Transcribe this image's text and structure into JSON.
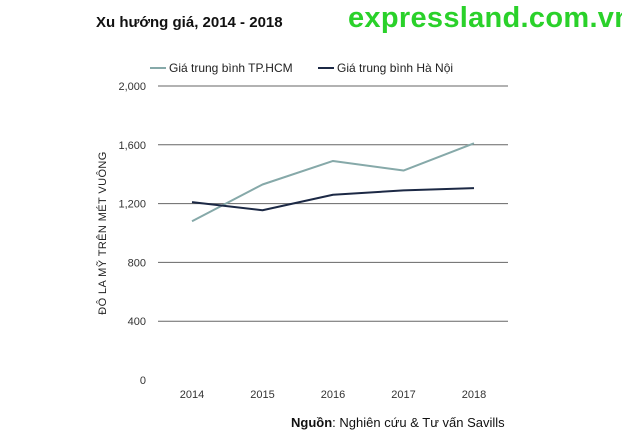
{
  "watermark": "expressland.com.vn",
  "source": {
    "label": "Nguồn",
    "text": ": Nghiên cứu & Tư vấn Savills"
  },
  "colors": {
    "hcm": "#86a9a9",
    "hanoi": "#1c2945",
    "grid": "#666666",
    "axis_text": "#333333"
  },
  "chart_data": {
    "type": "line",
    "title": "Xu hướng giá, 2014 - 2018",
    "ylabel": "ĐÔ LA MỸ TRÊN MÉT VUÔNG",
    "xlabel": "",
    "x": [
      "2014",
      "2015",
      "2016",
      "2017",
      "2018"
    ],
    "ylim": [
      0,
      2000
    ],
    "yticks": [
      0,
      400,
      800,
      1200,
      1600,
      2000
    ],
    "ytick_labels": [
      "0",
      "400",
      "800",
      "1,200",
      "1,600",
      "2,000"
    ],
    "grid": true,
    "legend": "top",
    "series": [
      {
        "name": "Giá trung bình TP.HCM",
        "color": "#86a9a9",
        "values": [
          1080,
          1330,
          1490,
          1425,
          1610
        ]
      },
      {
        "name": "Giá trung bình Hà Nội",
        "color": "#1c2945",
        "values": [
          1210,
          1155,
          1260,
          1290,
          1305
        ]
      }
    ]
  }
}
